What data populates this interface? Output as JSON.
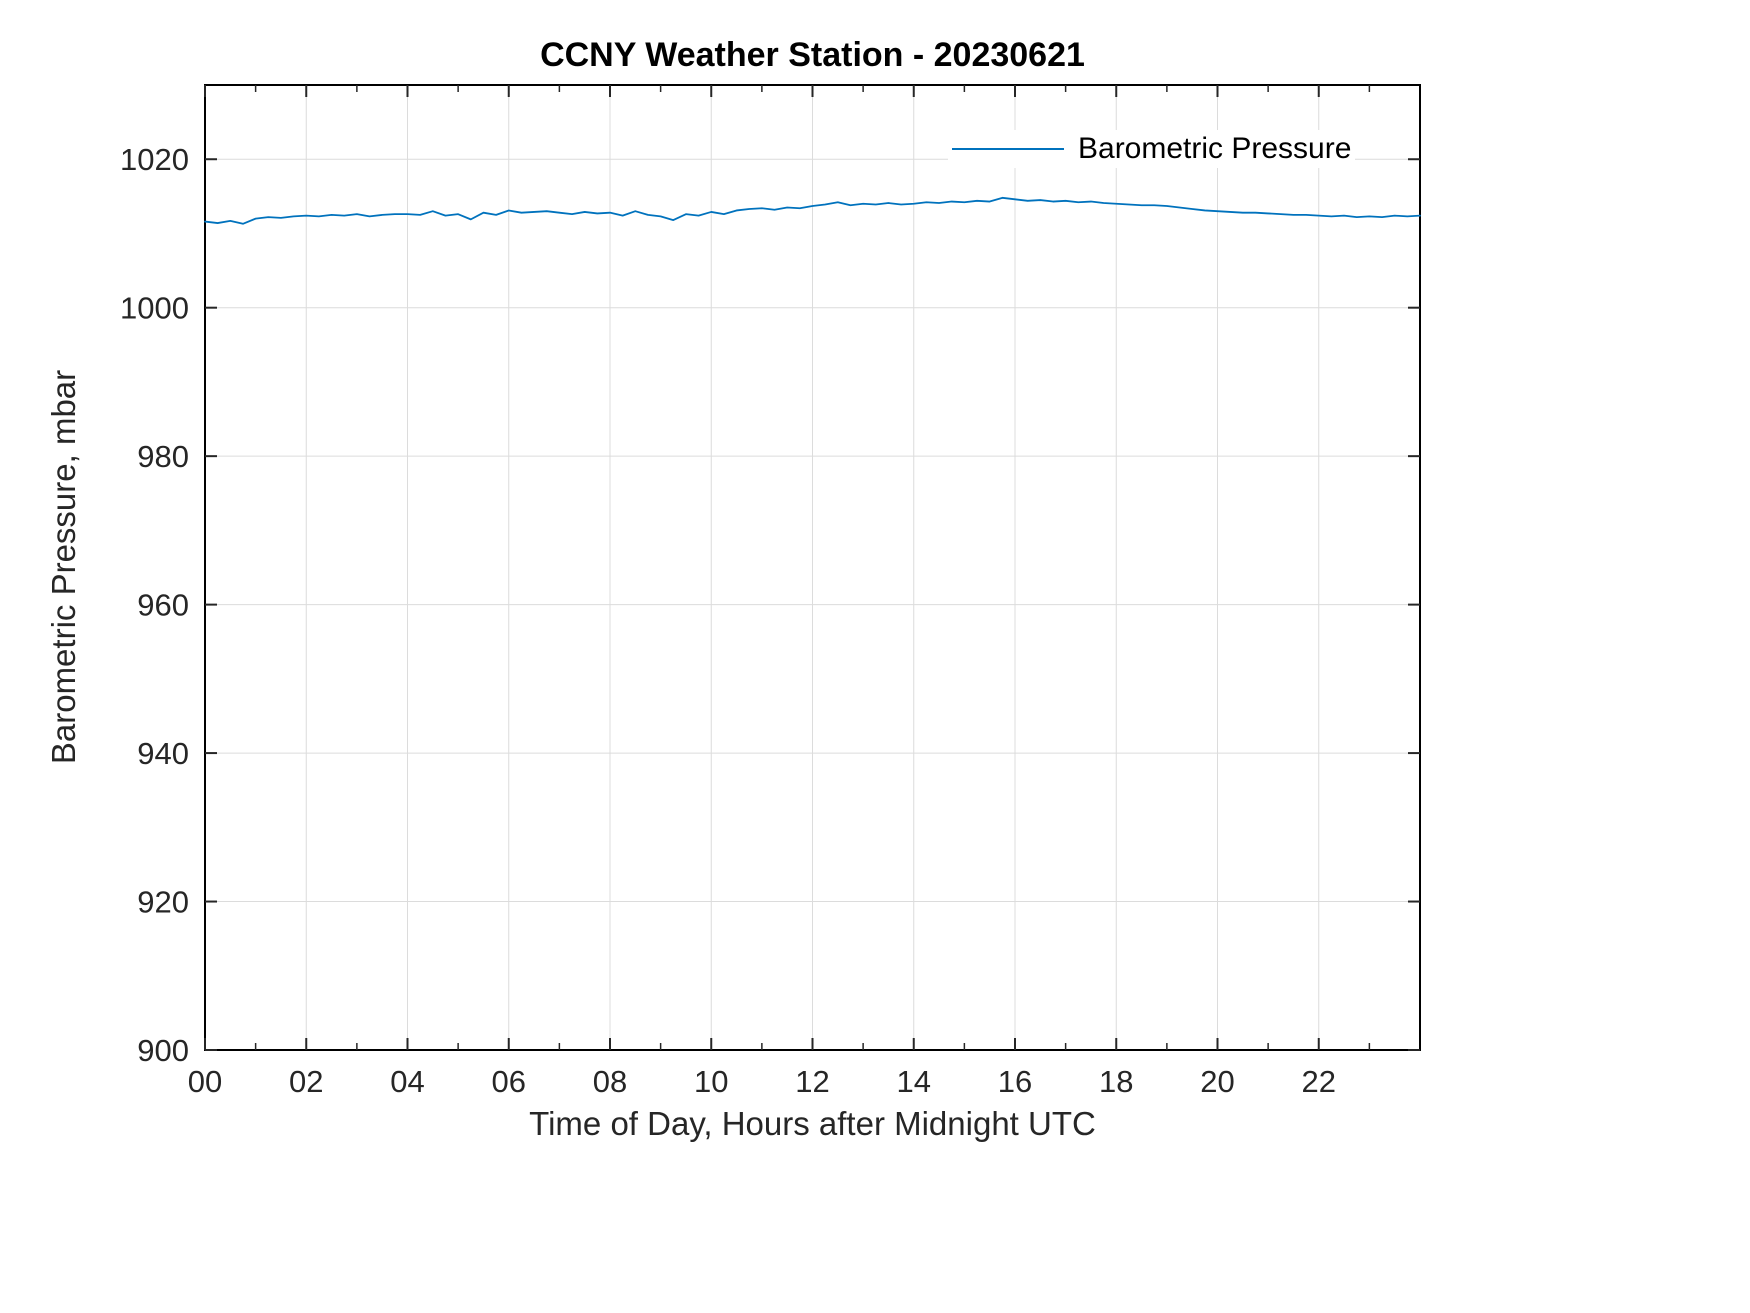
{
  "chart_data": {
    "type": "line",
    "title": "CCNY Weather Station - 20230621",
    "xlabel": "Time of Day, Hours after Midnight UTC",
    "ylabel": "Barometric Pressure, mbar",
    "xlim": [
      0,
      24
    ],
    "ylim": [
      900,
      1030
    ],
    "xticks": [
      0,
      2,
      4,
      6,
      8,
      10,
      12,
      14,
      16,
      18,
      20,
      22
    ],
    "xtick_labels": [
      "00",
      "02",
      "04",
      "06",
      "08",
      "10",
      "12",
      "14",
      "16",
      "18",
      "20",
      "22"
    ],
    "x_minor_ticks": [
      1,
      3,
      5,
      7,
      9,
      11,
      13,
      15,
      17,
      19,
      21,
      23
    ],
    "yticks": [
      900,
      920,
      940,
      960,
      980,
      1000,
      1020
    ],
    "ytick_labels": [
      "900",
      "920",
      "940",
      "960",
      "980",
      "1000",
      "1020"
    ],
    "grid": true,
    "legend_position": "top-right",
    "colors": {
      "line": "#0072BD",
      "axes": "#262626",
      "grid": "#dcdcdc",
      "box": "#000000"
    },
    "series": [
      {
        "name": "Barometric Pressure",
        "color": "#0072BD",
        "x": [
          0,
          0.25,
          0.5,
          0.75,
          1,
          1.25,
          1.5,
          1.75,
          2,
          2.25,
          2.5,
          2.75,
          3,
          3.25,
          3.5,
          3.75,
          4,
          4.25,
          4.5,
          4.75,
          5,
          5.25,
          5.5,
          5.75,
          6,
          6.25,
          6.5,
          6.75,
          7,
          7.25,
          7.5,
          7.75,
          8,
          8.25,
          8.5,
          8.75,
          9,
          9.25,
          9.5,
          9.75,
          10,
          10.25,
          10.5,
          10.75,
          11,
          11.25,
          11.5,
          11.75,
          12,
          12.25,
          12.5,
          12.75,
          13,
          13.25,
          13.5,
          13.75,
          14,
          14.25,
          14.5,
          14.75,
          15,
          15.25,
          15.5,
          15.75,
          16,
          16.25,
          16.5,
          16.75,
          17,
          17.25,
          17.5,
          17.75,
          18,
          18.25,
          18.5,
          18.75,
          19,
          19.25,
          19.5,
          19.75,
          20,
          20.25,
          20.5,
          20.75,
          21,
          21.25,
          21.5,
          21.75,
          22,
          22.25,
          22.5,
          22.75,
          23,
          23.25,
          23.5,
          23.75,
          24
        ],
        "y": [
          1011.6,
          1011.4,
          1011.7,
          1011.3,
          1012.0,
          1012.2,
          1012.1,
          1012.3,
          1012.4,
          1012.3,
          1012.5,
          1012.4,
          1012.6,
          1012.3,
          1012.5,
          1012.6,
          1012.6,
          1012.5,
          1013.0,
          1012.4,
          1012.6,
          1011.9,
          1012.8,
          1012.5,
          1013.1,
          1012.8,
          1012.9,
          1013.0,
          1012.8,
          1012.6,
          1012.9,
          1012.7,
          1012.8,
          1012.4,
          1013.0,
          1012.5,
          1012.3,
          1011.8,
          1012.6,
          1012.4,
          1012.9,
          1012.6,
          1013.1,
          1013.3,
          1013.4,
          1013.2,
          1013.5,
          1013.4,
          1013.7,
          1013.9,
          1014.2,
          1013.8,
          1014.0,
          1013.9,
          1014.1,
          1013.9,
          1014.0,
          1014.2,
          1014.1,
          1014.3,
          1014.2,
          1014.4,
          1014.3,
          1014.8,
          1014.6,
          1014.4,
          1014.5,
          1014.3,
          1014.4,
          1014.2,
          1014.3,
          1014.1,
          1014.0,
          1013.9,
          1013.8,
          1013.8,
          1013.7,
          1013.5,
          1013.3,
          1013.1,
          1013.0,
          1012.9,
          1012.8,
          1012.8,
          1012.7,
          1012.6,
          1012.5,
          1012.5,
          1012.4,
          1012.3,
          1012.4,
          1012.2,
          1012.3,
          1012.2,
          1012.4,
          1012.3,
          1012.4
        ]
      }
    ]
  }
}
